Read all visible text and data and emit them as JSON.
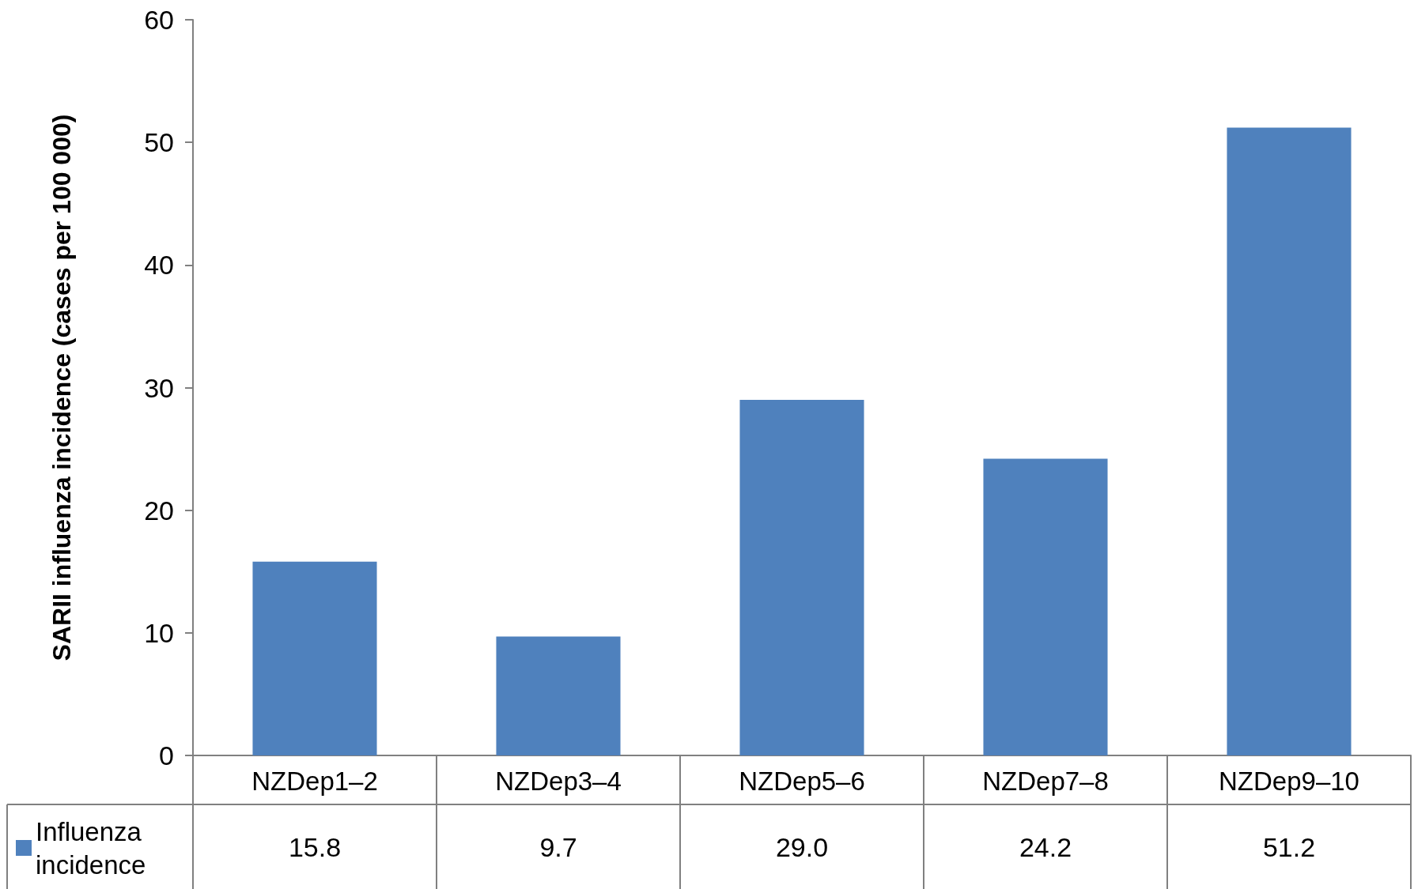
{
  "chart_data": {
    "type": "bar",
    "ylabel": "SARII influenza incidence (cases per 100 000)",
    "categories": [
      "NZDep1–2",
      "NZDep3–4",
      "NZDep5–6",
      "NZDep7–8",
      "NZDep9–10"
    ],
    "series": [
      {
        "name": "Influenza incidence",
        "color": "#4f81bd",
        "values": [
          15.8,
          9.7,
          29.0,
          24.2,
          51.2
        ]
      }
    ],
    "value_labels": [
      "15.8",
      "9.7",
      "29.0",
      "24.2",
      "51.2"
    ],
    "ylim": [
      0,
      60
    ],
    "yticks": [
      0,
      10,
      20,
      30,
      40,
      50,
      60
    ],
    "grid": false,
    "legend": "bottom left"
  }
}
